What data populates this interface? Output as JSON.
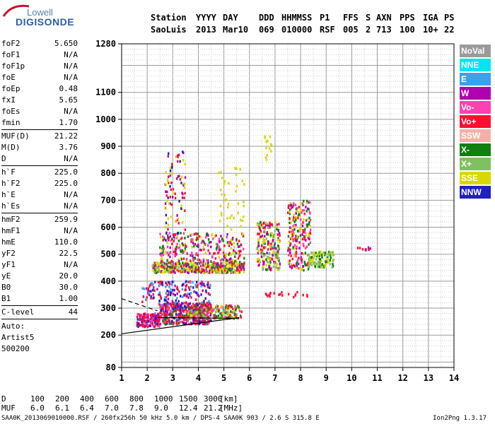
{
  "logo": {
    "top": "Lowell",
    "bottom": "DIGISONDE"
  },
  "header": {
    "cols": [
      "Station",
      "YYYY",
      "DAY",
      "DDD",
      "HHMMSS",
      "P1",
      "FFS",
      "S",
      "AXN",
      "PPS",
      "IGA",
      "PS"
    ],
    "vals": [
      "SaoLuis",
      "2013",
      "Mar10",
      "069",
      "010000",
      "RSF",
      "005",
      "2",
      "713",
      "100",
      "10+",
      "22"
    ]
  },
  "params": [
    {
      "name": "foF2",
      "value": "5.650"
    },
    {
      "name": "foF1",
      "value": "N/A"
    },
    {
      "name": "foF1p",
      "value": "N/A"
    },
    {
      "name": "foE",
      "value": "N/A"
    },
    {
      "name": "foEp",
      "value": "0.48"
    },
    {
      "name": "fxI",
      "value": "5.65"
    },
    {
      "name": "foEs",
      "value": "N/A"
    },
    {
      "name": "fmin",
      "value": "1.70"
    },
    {
      "sep": true
    },
    {
      "name": "MUF(D)",
      "value": "21.22"
    },
    {
      "name": "M(D)",
      "value": "3.76"
    },
    {
      "name": "D",
      "value": "N/A"
    },
    {
      "sep": true
    },
    {
      "name": "h`F",
      "value": "225.0"
    },
    {
      "name": "h`F2",
      "value": "225.0"
    },
    {
      "name": "h`E",
      "value": "N/A"
    },
    {
      "name": "h`Es",
      "value": "N/A"
    },
    {
      "sep": true
    },
    {
      "name": "hmF2",
      "value": "259.9"
    },
    {
      "name": "hmF1",
      "value": "N/A"
    },
    {
      "name": "hmE",
      "value": "110.0"
    },
    {
      "name": "yF2",
      "value": "22.5"
    },
    {
      "name": "yF1",
      "value": "N/A"
    },
    {
      "name": "yE",
      "value": "20.0"
    },
    {
      "name": "B0",
      "value": "30.0"
    },
    {
      "name": "B1",
      "value": "1.00"
    },
    {
      "sep": true
    },
    {
      "name": "C-level",
      "value": "44"
    },
    {
      "sep": true
    }
  ],
  "autoscaling": [
    "Auto:",
    "Artist5",
    "500200"
  ],
  "legend": [
    {
      "label": "NoVal",
      "color": "#9a9a9a"
    },
    {
      "label": "NNE",
      "color": "#00e5f0"
    },
    {
      "label": "E",
      "color": "#3aa0f0"
    },
    {
      "label": "W",
      "color": "#b000b0"
    },
    {
      "label": "Vo-",
      "color": "#ff40b0"
    },
    {
      "label": "Vo+",
      "color": "#ff1030"
    },
    {
      "label": "SSW",
      "color": "#f4b0a8"
    },
    {
      "label": "X-",
      "color": "#108010"
    },
    {
      "label": "X+",
      "color": "#80c060"
    },
    {
      "label": "SSE",
      "color": "#d8d800"
    },
    {
      "label": "NNW",
      "color": "#2020c0"
    }
  ],
  "muf_table": {
    "d_label": "D",
    "muf_label": "MUF",
    "d_values": [
      "100",
      "200",
      "400",
      "600",
      "800",
      "1000",
      "1500",
      "3000"
    ],
    "d_unit": "[km]",
    "muf_values": [
      "6.0",
      "6.1",
      "6.4",
      "7.0",
      "7.8",
      "9.0",
      "12.4",
      "21.2"
    ],
    "muf_unit": "[MHz]"
  },
  "footer": {
    "left": "SAA0K_2013069010000.RSF / 260fx256h 50 kHz 5.0 km / DPS-4 SAA0K 903 / 2.6 S 315.8 E",
    "right": "Ion2Png 1.3.17"
  },
  "chart_data": {
    "type": "scatter",
    "xlim": [
      1,
      14
    ],
    "ylim": [
      80,
      1280
    ],
    "x_ticks": [
      1,
      2,
      3,
      4,
      5,
      6,
      7,
      8,
      9,
      10,
      11,
      12,
      13,
      14
    ],
    "y_ticks": [
      80,
      200,
      300,
      400,
      500,
      600,
      700,
      800,
      900,
      1000,
      1100,
      1280
    ],
    "grid": true,
    "clusters": [
      {
        "x": [
          1.6,
          2.5
        ],
        "y": [
          230,
          280
        ],
        "n": 160,
        "colors": [
          "#ff1030",
          "#ff1030",
          "#ff40b0",
          "#b000b0",
          "#2020c0"
        ]
      },
      {
        "x": [
          2.5,
          4.5
        ],
        "y": [
          240,
          320
        ],
        "n": 420,
        "colors": [
          "#ff1030",
          "#ff1030",
          "#ff40b0",
          "#b000b0",
          "#2020c0",
          "#108010"
        ]
      },
      {
        "x": [
          3.5,
          5.7
        ],
        "y": [
          260,
          310
        ],
        "n": 200,
        "colors": [
          "#ff1030",
          "#ff40b0",
          "#108010",
          "#d8d800",
          "#80c060"
        ]
      },
      {
        "x": [
          1.8,
          4.5
        ],
        "y": [
          300,
          400
        ],
        "n": 200,
        "colors": [
          "#2020c0",
          "#b000b0",
          "#ff1030",
          "#3aa0f0"
        ]
      },
      {
        "x": [
          2.2,
          5.8
        ],
        "y": [
          430,
          470
        ],
        "n": 450,
        "colors": [
          "#d8d800",
          "#d8d800",
          "#80c060",
          "#108010",
          "#ff1030",
          "#b000b0"
        ]
      },
      {
        "x": [
          2.5,
          5.8
        ],
        "y": [
          470,
          580
        ],
        "n": 260,
        "colors": [
          "#d8d800",
          "#b000b0",
          "#ff40b0",
          "#ff1030",
          "#108010"
        ]
      },
      {
        "x": [
          2.7,
          3.5
        ],
        "y": [
          550,
          900
        ],
        "n": 90,
        "colors": [
          "#d8d800",
          "#b000b0",
          "#2020c0",
          "#ff1030"
        ]
      },
      {
        "x": [
          4.8,
          5.8
        ],
        "y": [
          560,
          820
        ],
        "n": 40,
        "colors": [
          "#d8d800"
        ]
      },
      {
        "x": [
          6.3,
          7.2
        ],
        "y": [
          440,
          620
        ],
        "n": 220,
        "colors": [
          "#d8d800",
          "#80c060",
          "#108010",
          "#ff1030",
          "#b000b0"
        ]
      },
      {
        "x": [
          7.5,
          8.4
        ],
        "y": [
          440,
          700
        ],
        "n": 220,
        "colors": [
          "#d8d800",
          "#ff1030",
          "#b000b0",
          "#108010",
          "#ff40b0"
        ]
      },
      {
        "x": [
          8.3,
          9.3
        ],
        "y": [
          450,
          510
        ],
        "n": 120,
        "colors": [
          "#d8d800",
          "#80c060",
          "#108010"
        ]
      },
      {
        "x": [
          6.5,
          8.3
        ],
        "y": [
          340,
          360
        ],
        "n": 20,
        "colors": [
          "#ff1030"
        ]
      },
      {
        "x": [
          6.6,
          6.9
        ],
        "y": [
          850,
          950
        ],
        "n": 14,
        "colors": [
          "#d8d800"
        ]
      },
      {
        "x": [
          10.2,
          10.8
        ],
        "y": [
          515,
          525
        ],
        "n": 8,
        "colors": [
          "#b000b0",
          "#ff1030"
        ]
      }
    ],
    "lines": [
      {
        "style": "solid",
        "x": [
          1,
          5.6
        ],
        "y": [
          205,
          265
        ]
      },
      {
        "style": "solid",
        "x": [
          2.4,
          5.6
        ],
        "y": [
          265,
          262
        ]
      },
      {
        "style": "dashed",
        "x": [
          1,
          2.4
        ],
        "y": [
          335,
          290
        ]
      }
    ]
  }
}
